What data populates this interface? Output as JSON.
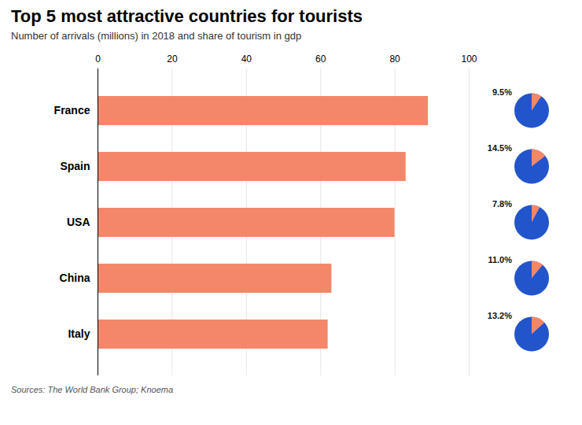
{
  "chart_data": [
    {
      "type": "bar",
      "orientation": "horizontal",
      "title": "Top 5 most attractive countries for tourists",
      "subtitle": "Number of arrivals (millions) in 2018 and share of tourism in gdp",
      "annotation": "Sources: The World Bank Group; Knoema",
      "categories": [
        "France",
        "Spain",
        "USA",
        "China",
        "Italy"
      ],
      "values": [
        89,
        83,
        80,
        63,
        62
      ],
      "color": "#F4876A",
      "xlim": [
        0,
        100
      ],
      "xticks": [
        0,
        20,
        40,
        60,
        80,
        100
      ],
      "grid": true
    },
    {
      "type": "pie",
      "values": [
        9.5,
        14.5,
        7.8,
        11.0,
        13.2
      ],
      "value_labels": [
        "9.5%",
        "14.5%",
        "7.8%",
        "11.0%",
        "13.2%"
      ],
      "data_labels": true,
      "colors": [
        "#F4876A",
        "#2255CC"
      ]
    }
  ]
}
